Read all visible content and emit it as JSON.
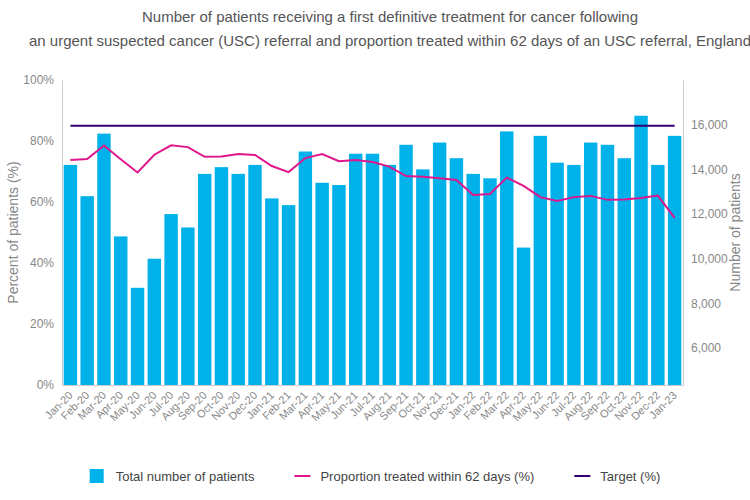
{
  "chart_data": {
    "type": "bar",
    "title": [
      "Number of patients receiving a first definitive treatment for cancer following",
      "an urgent suspected cancer (USC) referral and proportion treated within 62 days of an USC referral, England"
    ],
    "y_label": "Percent of patients (%)",
    "y2_label": "Number of patients",
    "categories": [
      "Jan-20",
      "Feb-20",
      "Mar-20",
      "Apr-20",
      "May-20",
      "Jun-20",
      "Jul-20",
      "Aug-20",
      "Sep-20",
      "Oct-20",
      "Nov-20",
      "Dec-20",
      "Jan-21",
      "Feb-21",
      "Mar-21",
      "Apr-21",
      "May-21",
      "Jun-21",
      "Jul-21",
      "Aug-21",
      "Sep-21",
      "Oct-21",
      "Nov-21",
      "Dec-21",
      "Jan-22",
      "Feb-22",
      "Mar-22",
      "Apr-22",
      "May-22",
      "Jun-22",
      "Jul-22",
      "Aug-22",
      "Sep-22",
      "Oct-22",
      "Nov-22",
      "Dec-22",
      "Jan-23"
    ],
    "series": [
      {
        "name": "Total number of patients",
        "type": "bar",
        "axis": "y2",
        "color": "#00b2e9",
        "values": [
          14200,
          12800,
          15600,
          11000,
          8700,
          10000,
          12000,
          11400,
          13800,
          14100,
          13800,
          14200,
          12700,
          12400,
          14800,
          13400,
          13300,
          14700,
          14700,
          14200,
          15100,
          14000,
          15200,
          14500,
          13800,
          13600,
          15700,
          10500,
          15500,
          14300,
          14200,
          15200,
          15100,
          14500,
          16400,
          14200,
          15500
        ]
      },
      {
        "name": "Proportion treated within 62 days (%)",
        "type": "line",
        "color": "#e0168c",
        "values": [
          73.8,
          74.1,
          78.5,
          74.0,
          69.7,
          75.5,
          78.6,
          78.0,
          74.8,
          74.9,
          75.7,
          75.4,
          71.8,
          69.8,
          74.4,
          75.7,
          73.4,
          73.8,
          73.1,
          71.6,
          68.5,
          68.3,
          67.8,
          67.2,
          62.3,
          62.6,
          68.0,
          65.3,
          61.6,
          60.3,
          61.6,
          62.0,
          60.7,
          60.8,
          61.3,
          62.1,
          54.8
        ]
      },
      {
        "name": "Target (%)",
        "type": "line",
        "color": "#330072",
        "values": [
          85,
          85,
          85,
          85,
          85,
          85,
          85,
          85,
          85,
          85,
          85,
          85,
          85,
          85,
          85,
          85,
          85,
          85,
          85,
          85,
          85,
          85,
          85,
          85,
          85,
          85,
          85,
          85,
          85,
          85,
          85,
          85,
          85,
          85,
          85,
          85,
          85
        ]
      }
    ],
    "ylim": [
      0,
      100
    ],
    "yticks": [
      {
        "value": 0,
        "label": "0%"
      },
      {
        "value": 20,
        "label": "20%"
      },
      {
        "value": 40,
        "label": "40%"
      },
      {
        "value": 60,
        "label": "60%"
      },
      {
        "value": 80,
        "label": "80%"
      },
      {
        "value": 100,
        "label": "100%"
      }
    ],
    "y2lim": [
      4350,
      18000
    ],
    "y2ticks": [
      {
        "value": 6000,
        "label": "6,000"
      },
      {
        "value": 8000,
        "label": "8,000"
      },
      {
        "value": 10000,
        "label": "10,000"
      },
      {
        "value": 12000,
        "label": "12,000"
      },
      {
        "value": 14000,
        "label": "14,000"
      },
      {
        "value": 16000,
        "label": "16,000"
      }
    ],
    "grid": false,
    "legend": "bottom"
  }
}
